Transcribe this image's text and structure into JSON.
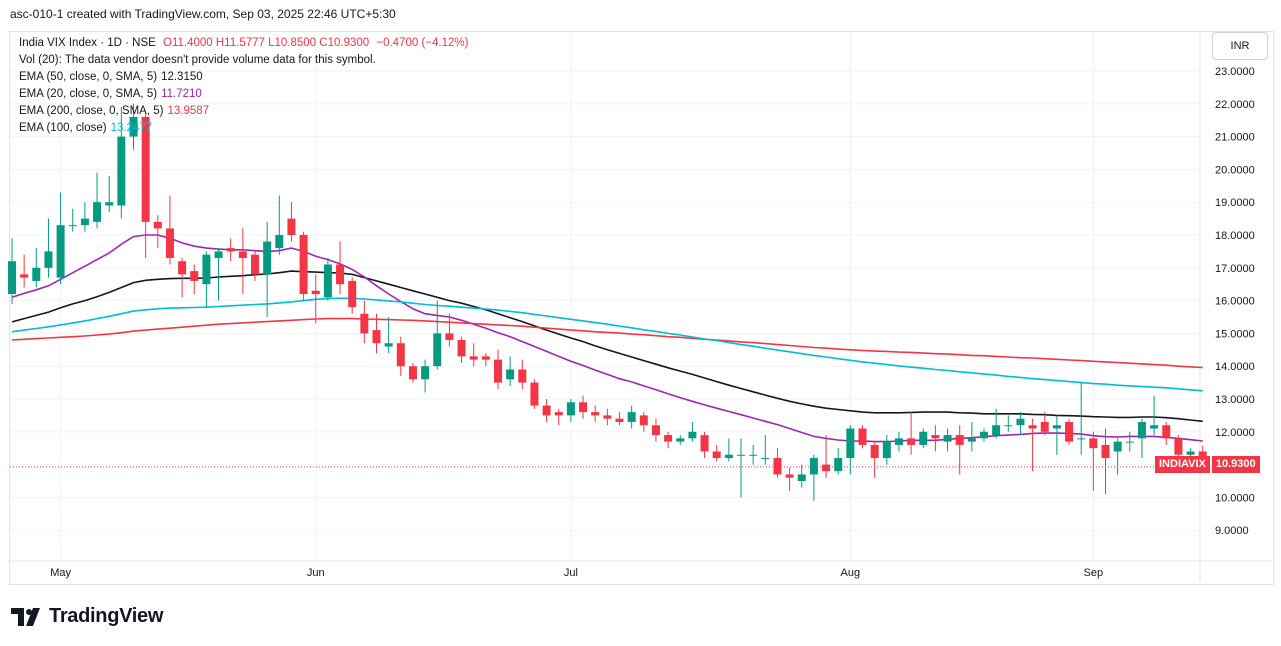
{
  "header": {
    "title": "asc-010-1 created with TradingView.com, Sep 03, 2025 22:46 UTC+5:30"
  },
  "legend": {
    "symbol": "India VIX Index · 1D · NSE",
    "ohlc": {
      "o": "O11.4000",
      "h": "H11.5777",
      "l": "L10.8500",
      "c": "C10.9300",
      "chg": "−0.4700 (−4.12%)"
    },
    "vol_note": "Vol (20): The data vendor doesn't provide volume data for this symbol.",
    "indicators": [
      {
        "label": "EMA (50, close, 0, SMA, 5)",
        "value": "12.3150",
        "color": "#131722"
      },
      {
        "label": "EMA (20, close, 0, SMA, 5)",
        "value": "11.7210",
        "color": "#9c27b0"
      },
      {
        "label": "EMA (200, close, 0, SMA, 5)",
        "value": "13.9587",
        "color": "#f23645"
      },
      {
        "label": "EMA (100, close)",
        "value": "13.2477",
        "color": "#00bcd4"
      }
    ]
  },
  "currency": "INR",
  "price_tag": {
    "symbol": "INDIAVIX",
    "value": "10.9300"
  },
  "brand": "TradingView",
  "chart_data": {
    "type": "candlestick",
    "y_ticks": [
      "23.0000",
      "22.0000",
      "21.0000",
      "20.0000",
      "19.0000",
      "18.0000",
      "17.0000",
      "16.0000",
      "15.0000",
      "14.0000",
      "13.0000",
      "12.0000",
      "11.0000",
      "10.0000",
      "9.0000"
    ],
    "ylim": [
      8.5,
      23.5
    ],
    "x_labels": [
      {
        "label": "May",
        "i": 4
      },
      {
        "label": "Jun",
        "i": 25
      },
      {
        "label": "Jul",
        "i": 46
      },
      {
        "label": "Aug",
        "i": 69
      },
      {
        "label": "Sep",
        "i": 89
      }
    ],
    "last_price": 10.93,
    "up_color": "#089981",
    "down_color": "#f23645",
    "candles": [
      [
        16.2,
        17.2,
        17.9,
        15.9
      ],
      [
        16.8,
        16.7,
        17.4,
        16.4
      ],
      [
        16.6,
        17.0,
        17.6,
        16.4
      ],
      [
        17.0,
        17.5,
        18.5,
        16.7
      ],
      [
        16.7,
        18.3,
        19.3,
        16.5
      ],
      [
        18.3,
        18.3,
        18.8,
        18.1
      ],
      [
        18.3,
        18.5,
        19.0,
        18.1
      ],
      [
        18.4,
        19.0,
        19.9,
        18.2
      ],
      [
        18.9,
        19.0,
        19.8,
        18.7
      ],
      [
        18.9,
        21.0,
        21.9,
        18.5
      ],
      [
        21.0,
        21.6,
        22.0,
        20.6
      ],
      [
        21.6,
        18.4,
        21.7,
        17.3
      ],
      [
        18.4,
        18.2,
        18.6,
        17.6
      ],
      [
        18.2,
        17.3,
        19.2,
        17.1
      ],
      [
        17.2,
        16.8,
        17.3,
        16.1
      ],
      [
        16.9,
        16.6,
        17.1,
        16.2
      ],
      [
        16.5,
        17.4,
        17.5,
        15.8
      ],
      [
        17.3,
        17.5,
        17.6,
        16.0
      ],
      [
        17.6,
        17.5,
        17.9,
        17.2
      ],
      [
        17.5,
        17.3,
        18.2,
        16.2
      ],
      [
        17.4,
        16.8,
        17.5,
        16.6
      ],
      [
        16.8,
        17.8,
        18.4,
        15.5
      ],
      [
        17.6,
        18.0,
        19.2,
        17.4
      ],
      [
        18.5,
        18.0,
        19.0,
        17.8
      ],
      [
        18.0,
        16.2,
        18.1,
        16.0
      ],
      [
        16.3,
        16.2,
        16.8,
        15.3
      ],
      [
        16.1,
        17.1,
        17.3,
        16.0
      ],
      [
        17.1,
        16.5,
        17.8,
        16.2
      ],
      [
        16.6,
        15.8,
        16.7,
        15.6
      ],
      [
        15.6,
        15.0,
        16.0,
        14.7
      ],
      [
        15.1,
        14.7,
        15.6,
        14.4
      ],
      [
        14.6,
        14.7,
        15.5,
        14.4
      ],
      [
        14.7,
        14.0,
        14.9,
        13.7
      ],
      [
        14.0,
        13.6,
        14.1,
        13.5
      ],
      [
        13.6,
        14.0,
        14.2,
        13.2
      ],
      [
        14.0,
        15.0,
        16.0,
        13.9
      ],
      [
        15.0,
        14.8,
        15.6,
        14.6
      ],
      [
        14.8,
        14.3,
        14.9,
        14.1
      ],
      [
        14.3,
        14.2,
        14.7,
        14.0
      ],
      [
        14.3,
        14.2,
        14.4,
        14.0
      ],
      [
        14.2,
        13.5,
        14.5,
        13.3
      ],
      [
        13.6,
        13.9,
        14.3,
        13.4
      ],
      [
        13.9,
        13.5,
        14.2,
        13.3
      ],
      [
        13.5,
        12.8,
        13.6,
        12.7
      ],
      [
        12.8,
        12.5,
        13.0,
        12.3
      ],
      [
        12.6,
        12.5,
        12.7,
        12.2
      ],
      [
        12.5,
        12.9,
        13.0,
        12.3
      ],
      [
        12.9,
        12.6,
        13.1,
        12.4
      ],
      [
        12.6,
        12.5,
        12.8,
        12.3
      ],
      [
        12.5,
        12.4,
        12.7,
        12.2
      ],
      [
        12.4,
        12.3,
        12.6,
        12.2
      ],
      [
        12.3,
        12.6,
        12.8,
        12.1
      ],
      [
        12.5,
        12.2,
        12.6,
        12.0
      ],
      [
        12.2,
        11.9,
        12.4,
        11.7
      ],
      [
        11.9,
        11.7,
        12.0,
        11.5
      ],
      [
        11.7,
        11.8,
        11.9,
        11.6
      ],
      [
        11.8,
        12.0,
        12.3,
        11.7
      ],
      [
        11.9,
        11.4,
        12.0,
        11.2
      ],
      [
        11.4,
        11.2,
        11.6,
        11.1
      ],
      [
        11.2,
        11.3,
        11.8,
        11.1
      ],
      [
        11.3,
        11.3,
        11.8,
        10.0
      ],
      [
        11.3,
        11.3,
        11.6,
        11.0
      ],
      [
        11.2,
        11.2,
        11.9,
        11.0
      ],
      [
        11.2,
        10.7,
        11.5,
        10.6
      ],
      [
        10.7,
        10.6,
        10.9,
        10.2
      ],
      [
        10.5,
        10.7,
        11.0,
        10.3
      ],
      [
        10.7,
        11.2,
        11.3,
        9.9
      ],
      [
        11.0,
        10.8,
        11.9,
        10.6
      ],
      [
        10.8,
        11.2,
        11.5,
        10.7
      ],
      [
        11.2,
        12.1,
        12.2,
        10.7
      ],
      [
        12.1,
        11.6,
        12.2,
        11.5
      ],
      [
        11.6,
        11.2,
        11.7,
        10.6
      ],
      [
        11.2,
        11.7,
        11.9,
        11.0
      ],
      [
        11.6,
        11.8,
        12.0,
        11.4
      ],
      [
        11.8,
        11.6,
        12.6,
        11.3
      ],
      [
        11.6,
        12.0,
        12.1,
        11.5
      ],
      [
        11.9,
        11.8,
        12.2,
        11.4
      ],
      [
        11.7,
        11.9,
        12.1,
        11.4
      ],
      [
        11.9,
        11.6,
        12.2,
        10.7
      ],
      [
        11.7,
        11.8,
        12.3,
        11.4
      ],
      [
        11.8,
        12.0,
        12.1,
        11.7
      ],
      [
        11.9,
        12.2,
        12.7,
        11.8
      ],
      [
        12.2,
        12.2,
        12.5,
        12.0
      ],
      [
        12.2,
        12.4,
        12.6,
        11.9
      ],
      [
        12.2,
        12.1,
        12.4,
        10.8
      ],
      [
        12.3,
        12.0,
        12.6,
        11.9
      ],
      [
        12.1,
        12.2,
        12.5,
        11.3
      ],
      [
        12.3,
        11.7,
        12.4,
        11.6
      ],
      [
        11.8,
        11.8,
        13.5,
        11.3
      ],
      [
        11.8,
        11.5,
        12.0,
        10.2
      ],
      [
        11.6,
        11.2,
        12.1,
        10.1
      ],
      [
        11.4,
        11.7,
        11.8,
        10.7
      ],
      [
        11.7,
        11.7,
        12.0,
        11.4
      ],
      [
        11.8,
        12.3,
        12.4,
        11.2
      ],
      [
        12.1,
        12.2,
        13.1,
        11.9
      ],
      [
        12.2,
        11.8,
        12.3,
        11.6
      ],
      [
        11.8,
        11.3,
        11.9,
        11.1
      ],
      [
        11.3,
        11.4,
        11.5,
        10.8
      ],
      [
        11.4,
        10.93,
        11.5775,
        10.85
      ]
    ],
    "series": [
      {
        "name": "EMA (50, close, 0, SMA, 5)",
        "color": "#131722",
        "values": [
          15.35,
          15.45,
          15.55,
          15.65,
          15.78,
          15.9,
          16.0,
          16.12,
          16.25,
          16.4,
          16.55,
          16.62,
          16.65,
          16.67,
          16.68,
          16.68,
          16.69,
          16.72,
          16.74,
          16.76,
          16.79,
          16.81,
          16.85,
          16.9,
          16.88,
          16.87,
          16.85,
          16.84,
          16.8,
          16.7,
          16.6,
          16.5,
          16.4,
          16.3,
          16.2,
          16.1,
          16.0,
          15.92,
          15.82,
          15.72,
          15.6,
          15.48,
          15.36,
          15.23,
          15.1,
          14.98,
          14.86,
          14.75,
          14.62,
          14.5,
          14.39,
          14.28,
          14.17,
          14.06,
          13.95,
          13.85,
          13.75,
          13.64,
          13.53,
          13.42,
          13.32,
          13.22,
          13.12,
          13.02,
          12.93,
          12.85,
          12.78,
          12.72,
          12.68,
          12.64,
          12.6,
          12.58,
          12.58,
          12.58,
          12.59,
          12.6,
          12.6,
          12.6,
          12.58,
          12.57,
          12.55,
          12.55,
          12.55,
          12.55,
          12.53,
          12.52,
          12.5,
          12.49,
          12.48,
          12.46,
          12.45,
          12.44,
          12.44,
          12.45,
          12.45,
          12.43,
          12.4,
          12.36,
          12.32
        ]
      },
      {
        "name": "EMA (20, close, 0, SMA, 5)",
        "color": "#9c27b0",
        "values": [
          16.1,
          16.22,
          16.33,
          16.45,
          16.65,
          16.85,
          17.05,
          17.25,
          17.45,
          17.72,
          17.95,
          18.0,
          18.0,
          17.9,
          17.76,
          17.66,
          17.6,
          17.57,
          17.55,
          17.55,
          17.52,
          17.5,
          17.52,
          17.6,
          17.5,
          17.35,
          17.25,
          17.12,
          16.95,
          16.72,
          16.45,
          16.2,
          15.97,
          15.75,
          15.6,
          15.55,
          15.5,
          15.4,
          15.28,
          15.16,
          15.02,
          14.9,
          14.75,
          14.6,
          14.45,
          14.3,
          14.15,
          14.02,
          13.88,
          13.75,
          13.62,
          13.52,
          13.4,
          13.28,
          13.16,
          13.04,
          12.93,
          12.82,
          12.72,
          12.62,
          12.52,
          12.42,
          12.32,
          12.22,
          12.1,
          11.98,
          11.86,
          11.8,
          11.75,
          11.72,
          11.72,
          11.7,
          11.7,
          11.72,
          11.74,
          11.74,
          11.74,
          11.77,
          11.8,
          11.82,
          11.85,
          11.88,
          11.9,
          11.92,
          11.95,
          11.96,
          11.96,
          11.95,
          11.93,
          11.88,
          11.85,
          11.84,
          11.86,
          11.86,
          11.86,
          11.83,
          11.8,
          11.76,
          11.72
        ]
      },
      {
        "name": "EMA (200, close, 0, SMA, 5)",
        "color": "#f23645",
        "values": [
          14.8,
          14.82,
          14.84,
          14.86,
          14.88,
          14.9,
          14.92,
          14.95,
          14.98,
          15.02,
          15.07,
          15.1,
          15.13,
          15.16,
          15.19,
          15.22,
          15.25,
          15.28,
          15.3,
          15.32,
          15.34,
          15.36,
          15.38,
          15.4,
          15.42,
          15.44,
          15.45,
          15.45,
          15.45,
          15.44,
          15.43,
          15.42,
          15.41,
          15.4,
          15.38,
          15.36,
          15.34,
          15.32,
          15.3,
          15.28,
          15.26,
          15.24,
          15.22,
          15.19,
          15.16,
          15.13,
          15.1,
          15.08,
          15.05,
          15.03,
          15.01,
          14.98,
          14.96,
          14.93,
          14.9,
          14.88,
          14.85,
          14.82,
          14.8,
          14.77,
          14.74,
          14.72,
          14.69,
          14.66,
          14.63,
          14.6,
          14.57,
          14.55,
          14.52,
          14.5,
          14.48,
          14.46,
          14.45,
          14.43,
          14.42,
          14.4,
          14.38,
          14.37,
          14.35,
          14.33,
          14.32,
          14.3,
          14.28,
          14.26,
          14.25,
          14.23,
          14.21,
          14.19,
          14.17,
          14.15,
          14.13,
          14.11,
          14.09,
          14.07,
          14.05,
          14.03,
          14.0,
          13.98,
          13.96
        ]
      },
      {
        "name": "EMA (100, close)",
        "color": "#00bcd4",
        "values": [
          15.05,
          15.1,
          15.15,
          15.2,
          15.26,
          15.32,
          15.38,
          15.45,
          15.52,
          15.6,
          15.68,
          15.72,
          15.75,
          15.77,
          15.78,
          15.79,
          15.8,
          15.82,
          15.84,
          15.86,
          15.88,
          15.9,
          15.93,
          15.96,
          16.0,
          16.04,
          16.06,
          16.07,
          16.07,
          16.05,
          16.02,
          15.99,
          15.96,
          15.92,
          15.88,
          15.85,
          15.83,
          15.8,
          15.77,
          15.74,
          15.71,
          15.67,
          15.63,
          15.58,
          15.53,
          15.48,
          15.43,
          15.38,
          15.33,
          15.28,
          15.22,
          15.17,
          15.11,
          15.06,
          15.0,
          14.95,
          14.89,
          14.83,
          14.78,
          14.72,
          14.66,
          14.61,
          14.55,
          14.49,
          14.44,
          14.38,
          14.33,
          14.28,
          14.23,
          14.18,
          14.13,
          14.09,
          14.05,
          14.01,
          13.97,
          13.94,
          13.9,
          13.87,
          13.83,
          13.8,
          13.76,
          13.73,
          13.69,
          13.66,
          13.62,
          13.59,
          13.56,
          13.53,
          13.5,
          13.47,
          13.45,
          13.42,
          13.4,
          13.38,
          13.36,
          13.34,
          13.31,
          13.28,
          13.25
        ]
      }
    ]
  }
}
